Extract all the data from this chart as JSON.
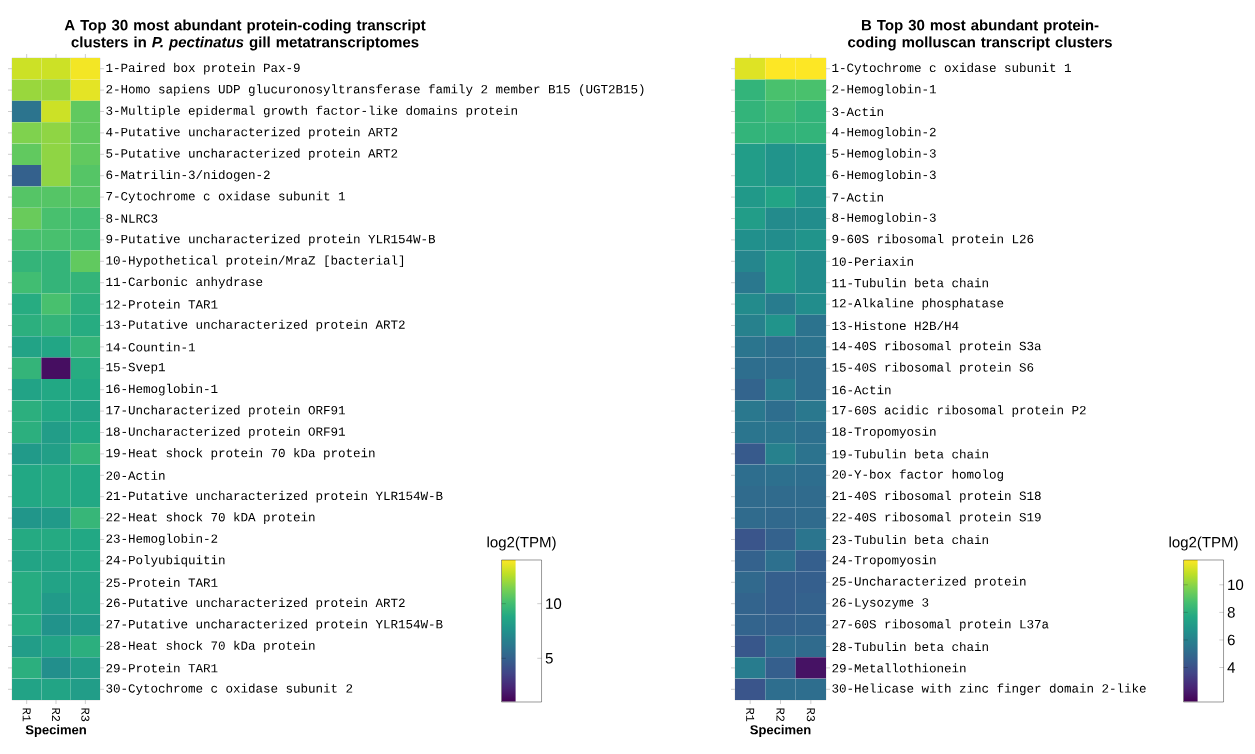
{
  "chart_data": [
    {
      "type": "heatmap",
      "title": "A Top 30 most abundant protein-coding transcript clusters in *P. pectinatus* gill metatranscriptomes",
      "xlabel": "Specimen",
      "clabel": "log2(TPM)",
      "categories": [
        "R1",
        "R2",
        "R3"
      ],
      "y_categories": [
        "1-Paired box protein Pax-9",
        "2-Homo sapiens UDP glucuronosyltransferase family 2 member B15 (UGT2B15)",
        "3-Multiple epidermal growth factor-like domains protein",
        "4-Putative uncharacterized protein ART2",
        "5-Putative uncharacterized protein ART2",
        "6-Matrilin-3/nidogen-2",
        "7-Cytochrome c oxidase subunit 1",
        "8-NLRC3",
        "9-Putative uncharacterized protein YLR154W-B",
        "10-Hypothetical protein/MraZ [bacterial]",
        "11-Carbonic anhydrase",
        "12-Protein TAR1",
        "13-Putative uncharacterized protein ART2",
        "14-Countin-1",
        "15-Svep1",
        "16-Hemoglobin-1",
        "17-Uncharacterized protein ORF91",
        "18-Uncharacterized protein ORF91",
        "19-Heat shock protein 70 kDa protein",
        "20-Actin",
        "21-Putative uncharacterized protein YLR154W-B",
        "22-Heat shock 70 kDA protein",
        "23-Hemoglobin-2",
        "24-Polyubiquitin",
        "25-Protein TAR1",
        "26-Putative uncharacterized protein ART2",
        "27-Putative uncharacterized protein YLR154W-B",
        "28-Heat shock 70 kDa protein",
        "29-Protein TAR1",
        "30-Cytochrome c oxidase subunit 2"
      ],
      "cells": [
        [
          13,
          13,
          13.8
        ],
        [
          12,
          12,
          13.5
        ],
        [
          6,
          13,
          10.8
        ],
        [
          11.5,
          11.8,
          10.8
        ],
        [
          10.8,
          11.8,
          10.8
        ],
        [
          5,
          11.8,
          10.5
        ],
        [
          10.5,
          10.5,
          10.5
        ],
        [
          11,
          10.2,
          10
        ],
        [
          10.2,
          10.2,
          10
        ],
        [
          9.5,
          9.5,
          10.8
        ],
        [
          10,
          9.5,
          9.5
        ],
        [
          9,
          10.2,
          9.2
        ],
        [
          9.2,
          9.5,
          9
        ],
        [
          8.5,
          8.7,
          9.5
        ],
        [
          9.5,
          1.5,
          9
        ],
        [
          8.5,
          8.8,
          8.8
        ],
        [
          9.2,
          8.8,
          8.5
        ],
        [
          9.2,
          8.2,
          8.8
        ],
        [
          8,
          8.3,
          9.5
        ],
        [
          8.8,
          8.9,
          8.8
        ],
        [
          8.8,
          8.9,
          8.8
        ],
        [
          7.8,
          8,
          9.6
        ],
        [
          8.9,
          8.9,
          8.8
        ],
        [
          8.6,
          8.6,
          8.8
        ],
        [
          9,
          8.5,
          8.6
        ],
        [
          9,
          8,
          8.5
        ],
        [
          9,
          7.6,
          8
        ],
        [
          8.2,
          8.5,
          9.2
        ],
        [
          9.2,
          7.4,
          8.2
        ],
        [
          8.5,
          8.6,
          8.2
        ]
      ],
      "clim": [
        1,
        14
      ],
      "cticks": [
        5,
        10
      ]
    },
    {
      "type": "heatmap",
      "title": "B Top 30 most abundant protein-coding molluscan transcript clusters",
      "xlabel": "Specimen",
      "clabel": "log2(TPM)",
      "categories": [
        "R1",
        "R2",
        "R3"
      ],
      "y_categories": [
        "1-Cytochrome c oxidase subunit 1",
        "2-Hemoglobin-1",
        "3-Actin",
        "4-Hemoglobin-2",
        "5-Hemoglobin-3",
        "6-Hemoglobin-3",
        "7-Actin",
        "8-Hemoglobin-3",
        "9-60S ribosomal protein L26",
        "10-Periaxin",
        "11-Tubulin beta chain",
        "12-Alkaline phosphatase",
        "13-Histone H2B/H4",
        "14-40S ribosomal protein S3a",
        "15-40S ribosomal protein S6",
        "16-Actin",
        "17-60S acidic ribosomal protein P2",
        "18-Tropomyosin",
        "19-Tubulin beta chain",
        "20-Y-box factor homolog",
        "21-40S ribosomal protein S18",
        "22-40S ribosomal protein S19",
        "23-Tubulin beta chain",
        "24-Tropomyosin",
        "25-Uncharacterized protein",
        "26-Lysozyme 3",
        "27-60S ribosomal protein L37a",
        "28-Tubulin beta chain",
        "29-Metallothionein",
        "30-Helicase with zinc finger domain 2-like"
      ],
      "cells": [
        [
          11.3,
          11.8,
          11.8
        ],
        [
          8.2,
          8.8,
          8.8
        ],
        [
          8.2,
          8.5,
          8.2
        ],
        [
          8.2,
          8.2,
          8.2
        ],
        [
          7.2,
          6.8,
          7
        ],
        [
          7.2,
          6.8,
          7
        ],
        [
          7,
          7.5,
          6.8
        ],
        [
          7.2,
          6.4,
          6.5
        ],
        [
          6.6,
          6.5,
          6.8
        ],
        [
          6.2,
          7,
          6.5
        ],
        [
          5.6,
          7,
          6.5
        ],
        [
          6.4,
          5.8,
          6.5
        ],
        [
          6,
          6.8,
          5.4
        ],
        [
          5.5,
          5.2,
          5.4
        ],
        [
          5.2,
          5.2,
          5.2
        ],
        [
          4.8,
          5.8,
          5.2
        ],
        [
          5.6,
          5.2,
          5.6
        ],
        [
          5.5,
          5.5,
          5.3
        ],
        [
          4.4,
          6,
          5.4
        ],
        [
          5.2,
          5.3,
          5.2
        ],
        [
          5.1,
          5.1,
          5.1
        ],
        [
          5.1,
          5,
          5.1
        ],
        [
          4.2,
          4.7,
          5.5
        ],
        [
          4.7,
          5.3,
          4.6
        ],
        [
          5,
          4.6,
          4.6
        ],
        [
          4.8,
          4.6,
          4.7
        ],
        [
          4.8,
          4.7,
          4.8
        ],
        [
          4.3,
          5.2,
          5.1
        ],
        [
          5.8,
          4.6,
          2
        ],
        [
          4.2,
          5.2,
          5.2
        ]
      ],
      "clim": [
        1.5,
        11.8
      ],
      "cticks": [
        4,
        6,
        8,
        10
      ]
    }
  ]
}
